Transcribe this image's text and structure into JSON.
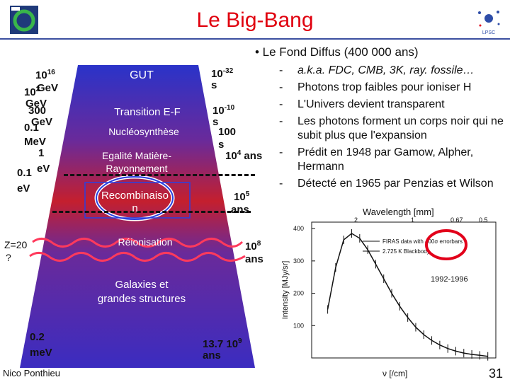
{
  "slide": {
    "title": "Le Big-Bang",
    "footer_author": "Nico Ponthieu",
    "page_number": "31"
  },
  "bullets": {
    "heading": "•  Le Fond Diffus (400 000 ans)",
    "items": [
      {
        "dash": "-",
        "text": "a.k.a. FDC, CMB, 3K, ray. fossile…"
      },
      {
        "dash": "-",
        "text": "Photons trop faibles pour ioniser H"
      },
      {
        "dash": "-",
        "text": "L'Univers devient transparent"
      },
      {
        "dash": "-",
        "text": "Les photons forment un corps noir qui ne subit plus que l'expansion"
      },
      {
        "dash": "-",
        "text": "Prédit en 1948 par Gamow, Alpher, Hermann"
      },
      {
        "dash": "-",
        "text": "Détecté en 1965 par Penzias et Wilson"
      }
    ]
  },
  "cone": {
    "era_labels": {
      "gut": "GUT",
      "transition": "Transition E-F",
      "nucleo": "Nucléosynthèse",
      "egalite_1": "Egalité Matière-",
      "egalite_2": "Rayonnement",
      "recomb_1": "Recombinaiso",
      "recomb_2": "n",
      "reion": "Réionisation",
      "galaxies_1": "Galaxies et",
      "galaxies_2": "grandes structures"
    },
    "energy_labels": {
      "e1_a": "10",
      "e1_exp": "16",
      "e1_b": "GeV",
      "e2_a": "10",
      "e2_exp": "2",
      "e2_b": "GeV",
      "e3_a": "300",
      "e3_b": "GeV",
      "e4_a": "0.1",
      "e4_b": "MeV",
      "e5_a": "1",
      "e5_b": "eV",
      "e6_a": "0.1",
      "e6_b": "eV",
      "z": "Z=20",
      "z_q": "?",
      "e7_a": "0.2",
      "e7_b": "meV"
    },
    "time_labels": {
      "t1_a": "10",
      "t1_exp": "-32",
      "t1_b": "s",
      "t2_a": "10",
      "t2_exp": "-10",
      "t2_b": "s",
      "t3_a": "100",
      "t3_b": "s",
      "t4_a": "10",
      "t4_exp": "4",
      "t4_b": " ans",
      "t5_a": "10",
      "t5_exp": "5",
      "t5_b": "ans",
      "t6_a": "10",
      "t6_exp": "8",
      "t6_b": "ans",
      "t7_a": "13.7 10",
      "t7_exp": "9",
      "t7_b": "ans"
    }
  },
  "chart": {
    "top_axis_label": "Wavelength [mm]",
    "top_ticks": [
      "2",
      "1",
      "0.67",
      "0.5"
    ],
    "y_label": "Intensity [MJy/sr]",
    "y_ticks": [
      "400",
      "300",
      "200",
      "100"
    ],
    "x_label": "ν [/cm]",
    "legend_1": "FIRAS data with 400σ errorbars",
    "legend_2": "2.725 K Blackbody",
    "years": "1992-1996"
  },
  "chart_data": {
    "type": "line",
    "title": "",
    "xlabel": "ν [/cm]",
    "ylabel": "Intensity [MJy/sr]",
    "ylim": [
      0,
      420
    ],
    "xlim": [
      0,
      23
    ],
    "series": [
      {
        "name": "FIRAS data with 400σ errorbars",
        "x": [
          2,
          3,
          4,
          5,
          6,
          7,
          8,
          9,
          10,
          11,
          12,
          13,
          14,
          15,
          16,
          17,
          18,
          19,
          20,
          21,
          22
        ],
        "y": [
          150,
          280,
          365,
          385,
          370,
          335,
          290,
          245,
          200,
          160,
          125,
          95,
          72,
          54,
          40,
          29,
          21,
          15,
          11,
          8,
          5
        ]
      }
    ]
  },
  "colors": {
    "title": "#e0000e",
    "cone_top": "#2b33c8",
    "cone_bottom": "#3b2bb0",
    "cone_mid": "#c0203a",
    "highlight_ellipse": "#2a3fe0",
    "red_circle": "#e2001a"
  }
}
